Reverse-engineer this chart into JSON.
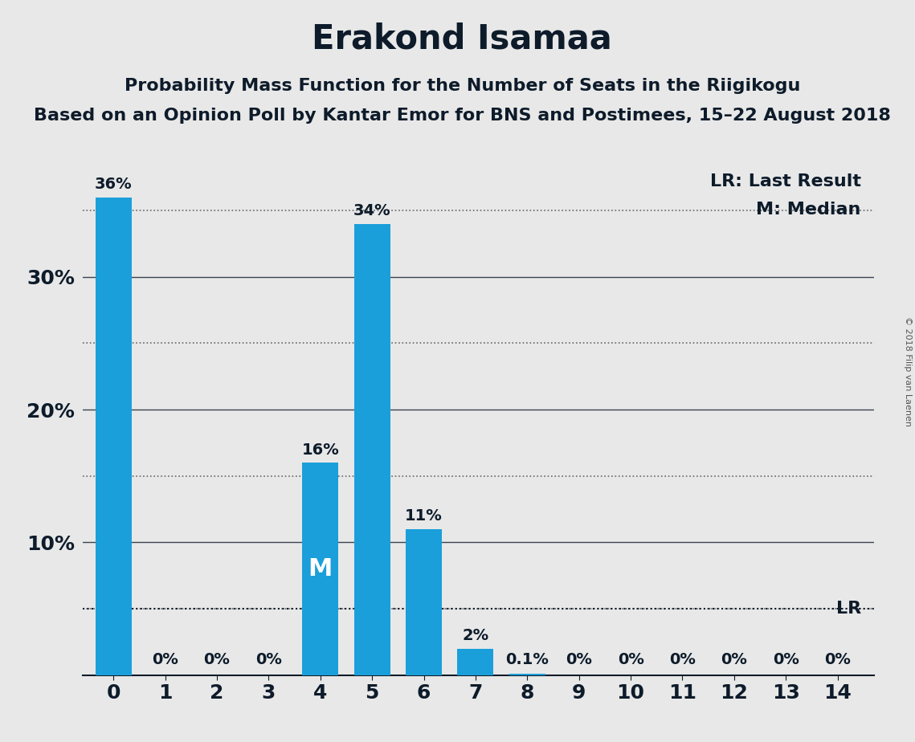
{
  "title": "Erakond Isamaa",
  "subtitle1": "Probability Mass Function for the Number of Seats in the Riigikogu",
  "subtitle2": "Based on an Opinion Poll by Kantar Emor for BNS and Postimees, 15–22 August 2018",
  "copyright": "© 2018 Filip van Laenen",
  "categories": [
    0,
    1,
    2,
    3,
    4,
    5,
    6,
    7,
    8,
    9,
    10,
    11,
    12,
    13,
    14
  ],
  "values": [
    36,
    0,
    0,
    0,
    16,
    34,
    11,
    2,
    0.1,
    0,
    0,
    0,
    0,
    0,
    0
  ],
  "bar_labels": [
    "36%",
    "0%",
    "0%",
    "0%",
    "16%",
    "34%",
    "11%",
    "2%",
    "0.1%",
    "0%",
    "0%",
    "0%",
    "0%",
    "0%",
    "0%"
  ],
  "bar_color": "#1a9fda",
  "background_color": "#e8e8e8",
  "ylim": [
    0,
    38
  ],
  "lr_value": 5.0,
  "lr_label": "LR",
  "lr_legend": "LR: Last Result",
  "median_bar": 4,
  "median_label": "M",
  "median_legend": "M: Median",
  "title_fontsize": 30,
  "subtitle_fontsize": 16,
  "bar_label_fontsize": 14,
  "axis_tick_fontsize": 18,
  "legend_fontsize": 16,
  "copyright_fontsize": 8,
  "solid_grid_lines": [
    10,
    20,
    30
  ],
  "dotted_grid_lines": [
    5,
    15,
    25,
    35
  ],
  "ytick_positions": [
    0,
    10,
    20,
    30
  ],
  "ytick_labels": [
    "",
    "10%",
    "20%",
    "30%"
  ],
  "text_color": "#0d1b2a",
  "grid_solid_color": "#0d1b2a",
  "grid_dotted_color": "#666666"
}
